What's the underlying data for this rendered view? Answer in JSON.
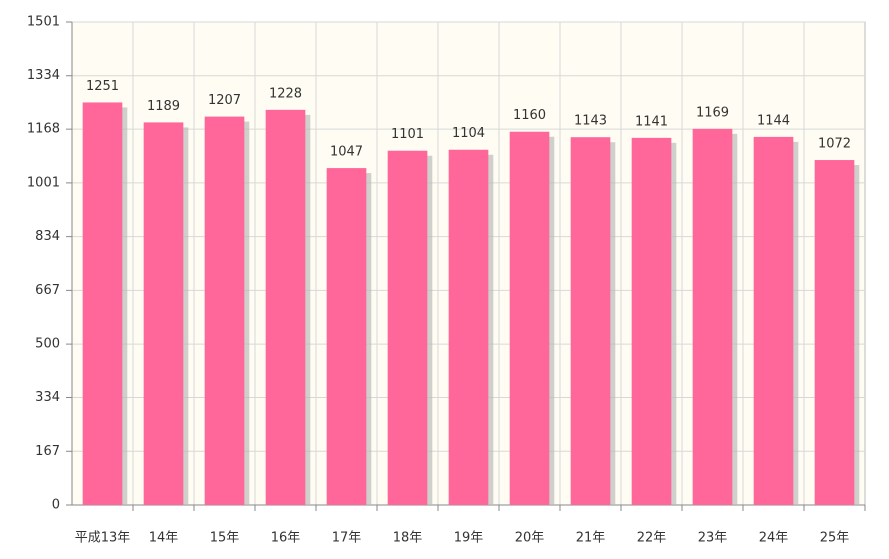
{
  "chart_data": {
    "type": "bar",
    "categories": [
      "平成13年",
      "14年",
      "15年",
      "16年",
      "17年",
      "18年",
      "19年",
      "20年",
      "21年",
      "22年",
      "23年",
      "24年",
      "25年"
    ],
    "values": [
      1251,
      1189,
      1207,
      1228,
      1047,
      1101,
      1104,
      1160,
      1143,
      1141,
      1169,
      1144,
      1072
    ],
    "color": "#ff6699",
    "ylim": [
      0,
      1501
    ],
    "yticks": [
      0,
      167,
      334,
      500,
      667,
      834,
      1001,
      1168,
      1334,
      1501
    ],
    "grid": true
  }
}
